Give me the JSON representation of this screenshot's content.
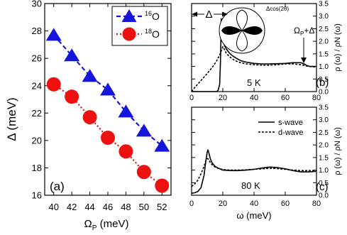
{
  "chart_data": [
    {
      "panel": "a",
      "type": "line",
      "panel_label": "(a)",
      "xlabel_main": "Ω",
      "xlabel_sub": "P",
      "xlabel_unit": " (meV)",
      "ylabel": "Δ (meV)",
      "xlim": [
        39,
        53
      ],
      "ylim": [
        16,
        30
      ],
      "xticks": [
        40,
        42,
        44,
        46,
        48,
        50,
        52
      ],
      "yticks": [
        16,
        18,
        20,
        22,
        24,
        26,
        28,
        30
      ],
      "legend_position": "top-right",
      "series": [
        {
          "name_sup": "16",
          "name_base": "O",
          "color": "#1515dc",
          "marker": "triangle",
          "x": [
            40,
            42,
            44,
            46,
            48,
            50,
            52
          ],
          "y": [
            27.7,
            26.2,
            24.7,
            23.7,
            22.1,
            20.7,
            19.6
          ]
        },
        {
          "name_sup": "18",
          "name_base": "O",
          "color": "#ee0f0f",
          "marker": "circle",
          "x": [
            40,
            42,
            44,
            46,
            48,
            50,
            52
          ],
          "y": [
            24.1,
            23.2,
            21.7,
            20.2,
            19.2,
            17.7,
            16.7
          ]
        }
      ]
    },
    {
      "panel": "b",
      "type": "line",
      "panel_label": "(b)",
      "temperature_label": "5 K",
      "ylabel": "ρ (ω) / ρN (ω)",
      "xlim": [
        0,
        80
      ],
      "ylim": [
        0,
        3.5
      ],
      "xticks": [
        0,
        20,
        40,
        60,
        80
      ],
      "yticks": [
        0,
        0.5,
        1.0,
        1.5,
        2.0,
        2.5,
        3.0,
        3.5
      ],
      "annotations": {
        "delta": "Δ",
        "omega_base": "Ω",
        "omega_sub": "P",
        "omega_tail": "+Δ",
        "inset_label": "Δcos(2θ)"
      },
      "series": [
        {
          "name": "s-wave",
          "style": "solid",
          "x": [
            0,
            16,
            17,
            18,
            18.5,
            19,
            19.5,
            20,
            21,
            22,
            24,
            26,
            28,
            30,
            32,
            35,
            40,
            45,
            50,
            55,
            60,
            65,
            70,
            72,
            74,
            76,
            80
          ],
          "y": [
            0,
            0,
            0.05,
            0.3,
            1.2,
            2.9,
            2.4,
            2.05,
            1.85,
            1.72,
            1.55,
            1.43,
            1.35,
            1.28,
            1.22,
            1.17,
            1.12,
            1.1,
            1.1,
            1.11,
            1.12,
            1.15,
            1.15,
            1.1,
            1.03,
            1.0,
            1.0
          ]
        },
        {
          "name": "d-wave",
          "style": "dashed",
          "x": [
            0,
            2,
            4,
            6,
            8,
            10,
            12,
            14,
            16,
            18,
            19,
            20,
            21,
            22,
            24,
            26,
            28,
            30,
            35,
            40,
            45,
            50,
            55,
            60,
            65,
            70,
            75,
            80
          ],
          "y": [
            0,
            0.16,
            0.3,
            0.44,
            0.58,
            0.72,
            0.87,
            1.03,
            1.22,
            1.45,
            1.62,
            1.78,
            1.68,
            1.55,
            1.4,
            1.3,
            1.23,
            1.17,
            1.1,
            1.07,
            1.05,
            1.05,
            1.07,
            1.1,
            1.1,
            1.07,
            1.0,
            0.98
          ]
        }
      ]
    },
    {
      "panel": "c",
      "type": "line",
      "panel_label": "(c)",
      "temperature_label": "80 K",
      "xlabel": "ω (meV)",
      "ylabel": "ρ (ω) / ρN (ω)",
      "xlim": [
        0,
        80
      ],
      "ylim": [
        0,
        3.5
      ],
      "xticks": [
        0,
        20,
        40,
        60,
        80
      ],
      "yticks": [
        0,
        0.5,
        1.0,
        1.5,
        2.0,
        2.5,
        3.0,
        3.5
      ],
      "legend_position": "top-right",
      "series": [
        {
          "name": "s-wave",
          "style": "solid",
          "x": [
            0,
            2,
            4,
            6,
            8,
            9,
            10,
            10.5,
            11,
            12,
            13,
            15,
            17,
            20,
            25,
            30,
            35,
            40,
            45,
            50,
            55,
            60,
            65,
            70,
            75,
            80
          ],
          "y": [
            0.08,
            0.1,
            0.15,
            0.3,
            0.8,
            1.3,
            1.72,
            1.8,
            1.7,
            1.45,
            1.3,
            1.15,
            1.08,
            1.0,
            0.98,
            0.98,
            1.0,
            1.03,
            1.08,
            1.12,
            1.1,
            1.05,
            0.98,
            0.93,
            0.93,
            0.95
          ]
        },
        {
          "name": "d-wave",
          "style": "dashed",
          "x": [
            0,
            2,
            4,
            6,
            8,
            9,
            10,
            10.5,
            11,
            12,
            13,
            15,
            17,
            20,
            25,
            30,
            35,
            40,
            45,
            50,
            55,
            60,
            65,
            70,
            75,
            80
          ],
          "y": [
            0.35,
            0.45,
            0.6,
            0.85,
            1.15,
            1.35,
            1.45,
            1.45,
            1.4,
            1.3,
            1.22,
            1.12,
            1.07,
            1.02,
            1.0,
            1.0,
            1.01,
            1.03,
            1.05,
            1.07,
            1.06,
            1.03,
            1.0,
            0.98,
            0.98,
            0.98
          ]
        }
      ]
    }
  ]
}
